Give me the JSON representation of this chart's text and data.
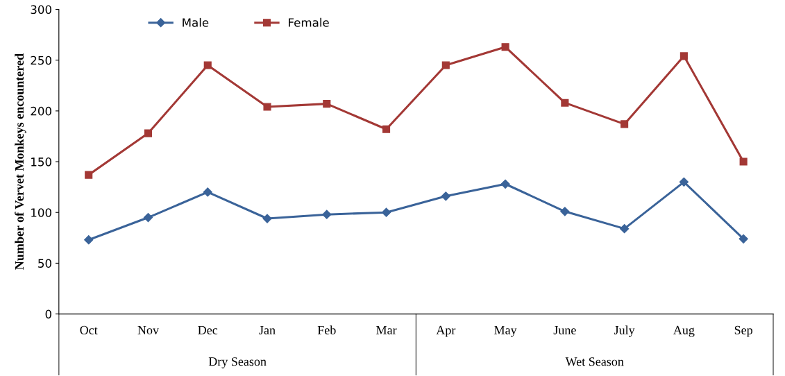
{
  "chart_data": {
    "type": "line",
    "ylabel": "Number of Vervet Monkeys encountered",
    "categories": [
      "Oct",
      "Nov",
      "Dec",
      "Jan",
      "Feb",
      "Mar",
      "Apr",
      "May",
      "June",
      "July",
      "Aug",
      "Sep"
    ],
    "series": [
      {
        "name": "Male",
        "color": "#3a6399",
        "marker": "diamond",
        "values": [
          73,
          95,
          120,
          94,
          98,
          100,
          116,
          128,
          101,
          84,
          130,
          74
        ]
      },
      {
        "name": "Female",
        "color": "#a33835",
        "marker": "square",
        "values": [
          137,
          178,
          245,
          204,
          207,
          182,
          245,
          263,
          208,
          187,
          254,
          150
        ]
      }
    ],
    "annotations": [
      "Dry Season",
      "Wet Season"
    ],
    "ylim": [
      0,
      300
    ],
    "yticks": [
      0,
      50,
      100,
      150,
      200,
      250,
      300
    ],
    "grid": false,
    "legend": "top left",
    "line_style": "solid"
  }
}
